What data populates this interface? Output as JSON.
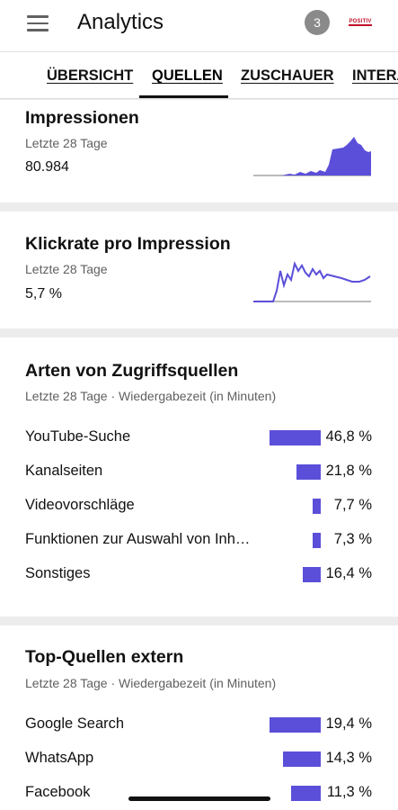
{
  "app_title": "Analytics",
  "notification_count": "3",
  "avatar_text": "POSITIV",
  "tabs": [
    {
      "label": "ÜBERSICHT"
    },
    {
      "label": "QUELLEN"
    },
    {
      "label": "ZUSCHAUER"
    },
    {
      "label": "INTERA"
    }
  ],
  "active_tab": "QUELLEN",
  "impressions": {
    "title": "Impressionen",
    "period": "Letzte 28 Tage",
    "value": "80.984"
  },
  "ctr": {
    "title": "Klickrate pro Impression",
    "period": "Letzte 28 Tage",
    "value": "5,7 %"
  },
  "traffic_sources": {
    "title": "Arten von Zugriffsquellen",
    "subtitle": "Letzte 28 Tage · Wiedergabezeit (in Minuten)",
    "rows": [
      {
        "label": "YouTube-Suche",
        "percent": "46,8 %",
        "value": 46.8
      },
      {
        "label": "Kanalseiten",
        "percent": "21,8 %",
        "value": 21.8
      },
      {
        "label": "Videovorschläge",
        "percent": "7,7 %",
        "value": 7.7
      },
      {
        "label": "Funktionen zur Auswahl von Inha…",
        "percent": "7,3 %",
        "value": 7.3
      },
      {
        "label": "Sonstiges",
        "percent": "16,4 %",
        "value": 16.4
      }
    ]
  },
  "external_sources": {
    "title": "Top-Quellen extern",
    "subtitle": "Letzte 28 Tage · Wiedergabezeit (in Minuten)",
    "rows": [
      {
        "label": "Google Search",
        "percent": "19,4 %",
        "value": 19.4
      },
      {
        "label": "WhatsApp",
        "percent": "14,3 %",
        "value": 14.3
      },
      {
        "label": "Facebook",
        "percent": "11,3 %",
        "value": 11.3
      }
    ]
  },
  "colors": {
    "bar": "#5b4fd9",
    "background": "#ececec",
    "card": "#ffffff"
  }
}
